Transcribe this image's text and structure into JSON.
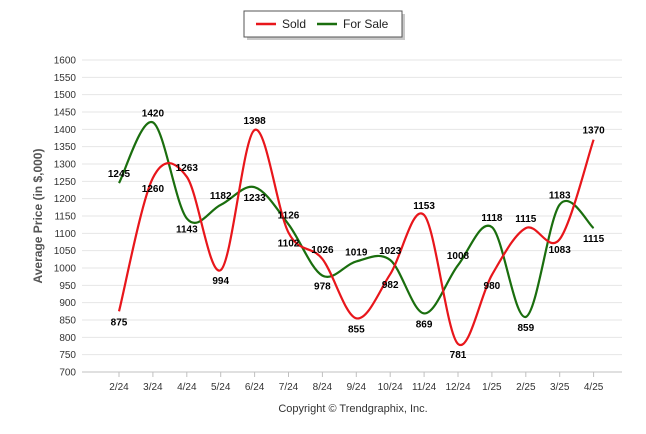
{
  "chart_data": {
    "type": "line",
    "title": "",
    "xlabel": "",
    "ylabel": "Average Price (in $,000)",
    "ylim": [
      700,
      1600
    ],
    "yticks": [
      700,
      750,
      800,
      850,
      900,
      950,
      1000,
      1050,
      1100,
      1150,
      1200,
      1250,
      1300,
      1350,
      1400,
      1450,
      1500,
      1550,
      1600
    ],
    "grid": true,
    "legend_position": "top-center",
    "categories": [
      "2/24",
      "3/24",
      "4/24",
      "5/24",
      "6/24",
      "7/24",
      "8/24",
      "9/24",
      "10/24",
      "11/24",
      "12/24",
      "1/25",
      "2/25",
      "3/25",
      "4/25"
    ],
    "series": [
      {
        "name": "Sold",
        "color": "#e8161b",
        "values": [
          875,
          1260,
          1263,
          994,
          1398,
          1102,
          1026,
          855,
          982,
          1153,
          781,
          980,
          1115,
          1083,
          1370
        ]
      },
      {
        "name": "For Sale",
        "color": "#1a6e0e",
        "values": [
          1245,
          1420,
          1143,
          1182,
          1233,
          1126,
          978,
          1019,
          1023,
          869,
          1008,
          1118,
          859,
          1183,
          1115
        ]
      }
    ],
    "credit": "Copyright © Trendgraphix, Inc."
  }
}
